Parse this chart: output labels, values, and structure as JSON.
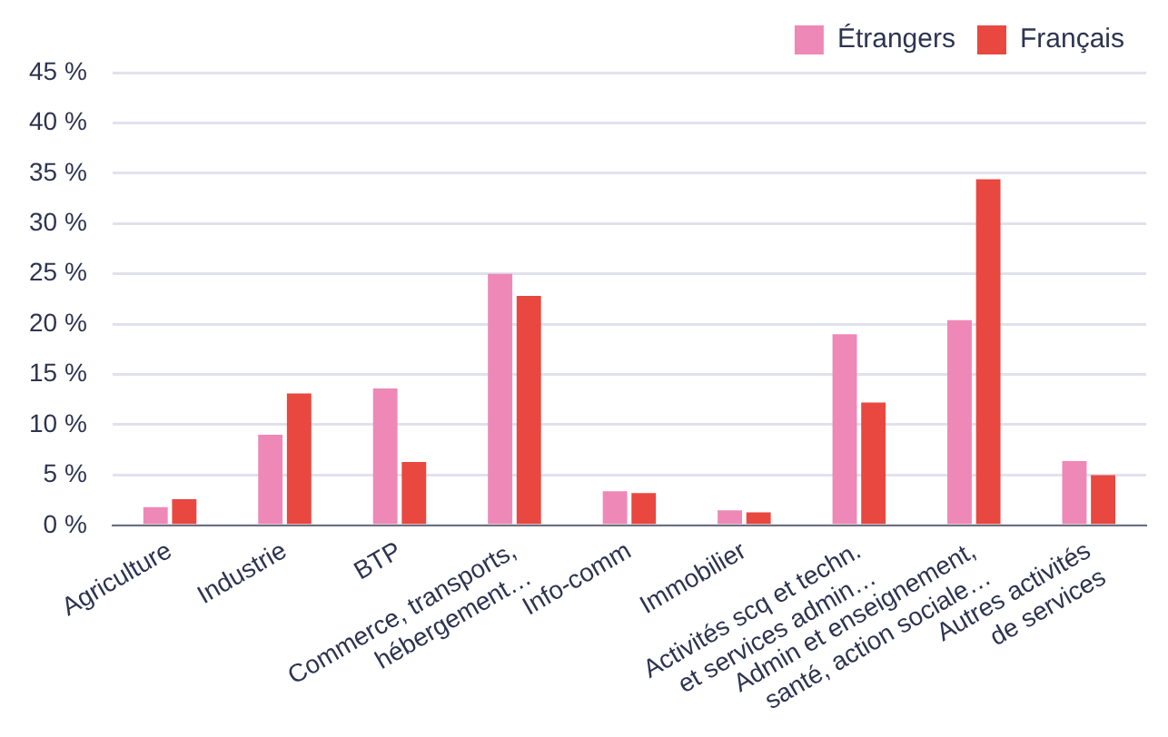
{
  "chart_data": {
    "type": "bar",
    "categories": [
      "Agriculture",
      "Industrie",
      "BTP",
      "Commerce, transports,\nhébergement…",
      "Info-comm",
      "Immobilier",
      "Activités scq et techn.\net services admin…",
      "Admin et enseignement,\nsanté, action sociale…",
      "Autres activités\nde services"
    ],
    "series": [
      {
        "name": "Étrangers",
        "color": "#ee88b7",
        "values": [
          1.8,
          9.0,
          13.6,
          25.0,
          3.4,
          1.5,
          19.0,
          20.4,
          6.4
        ]
      },
      {
        "name": "Français",
        "color": "#e8483f",
        "values": [
          2.6,
          13.1,
          6.3,
          22.8,
          3.2,
          1.3,
          12.2,
          34.4,
          5.0
        ]
      }
    ],
    "ylim": [
      0,
      45
    ],
    "yticks": [
      {
        "value": 0,
        "label": "0 %"
      },
      {
        "value": 5,
        "label": "5 %"
      },
      {
        "value": 10,
        "label": "10 %"
      },
      {
        "value": 15,
        "label": "15 %"
      },
      {
        "value": 20,
        "label": "20 %"
      },
      {
        "value": 25,
        "label": "25 %"
      },
      {
        "value": 30,
        "label": "30 %"
      },
      {
        "value": 35,
        "label": "35 %"
      },
      {
        "value": 40,
        "label": "40 %"
      },
      {
        "value": 45,
        "label": "45 %"
      }
    ],
    "grid": "y",
    "legend": "top right"
  }
}
